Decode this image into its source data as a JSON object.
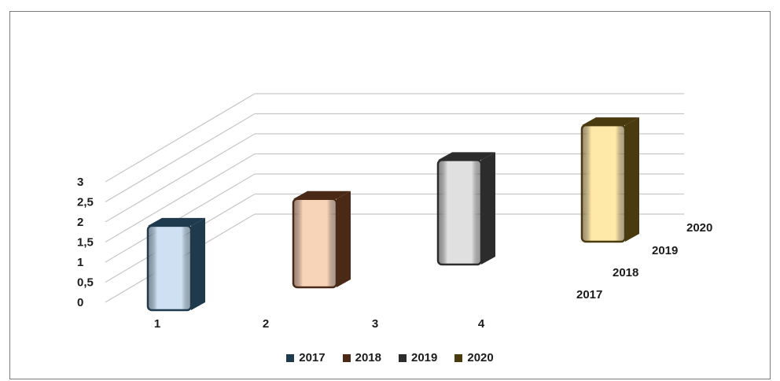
{
  "chart_data": {
    "type": "bar",
    "three_d": true,
    "title": "",
    "xlabel": "",
    "ylabel": "",
    "categories": [
      "1",
      "2",
      "3",
      "4"
    ],
    "ylim": [
      0,
      3
    ],
    "y_ticks": [
      "0",
      "0,5",
      "1",
      "1,5",
      "2",
      "2,5",
      "3"
    ],
    "grid": true,
    "legend_position": "bottom",
    "series": [
      {
        "name": "2017",
        "values": [
          2.1,
          null,
          null,
          null
        ],
        "color": "#1f3a4d",
        "face_color": "#cfe0f2"
      },
      {
        "name": "2018",
        "values": [
          null,
          2.2,
          null,
          null
        ],
        "color": "#4a2a16",
        "face_color": "#f7d3b8"
      },
      {
        "name": "2019",
        "values": [
          null,
          null,
          2.6,
          null
        ],
        "color": "#2c2c2c",
        "face_color": "#e0e0e0"
      },
      {
        "name": "2020",
        "values": [
          null,
          null,
          null,
          2.9
        ],
        "color": "#4a3a10",
        "face_color": "#ffe9a8"
      }
    ]
  }
}
